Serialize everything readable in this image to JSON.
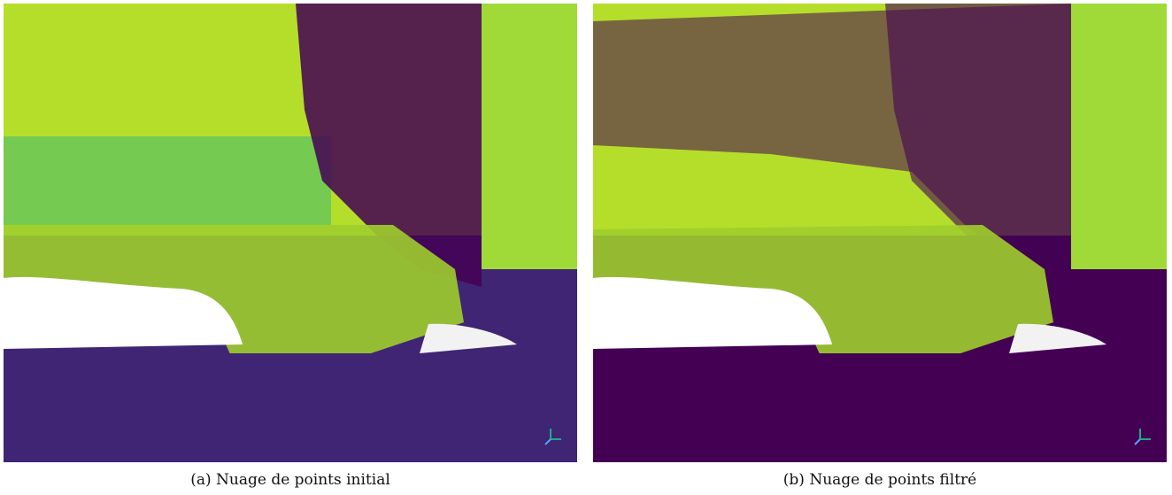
{
  "figure": {
    "panels": [
      {
        "id": "a",
        "caption": "(a) Nuage de points initial",
        "colors": {
          "foliage": "#b5de2b",
          "foliage_alt": "#6ece58",
          "teal": "#22a884",
          "dark": "#440154",
          "ground": "#3f2574",
          "white_patch": "#ffffff",
          "yellow": "#fde725"
        }
      },
      {
        "id": "b",
        "caption": "(b) Nuage de points filtré",
        "colors": {
          "foliage": "#b5de2b",
          "foliage_alt": "#7ad151",
          "teal": "#35b779",
          "dark": "#440154",
          "ground": "#440154",
          "white_patch": "#ffffff",
          "yellow": "#fde725"
        }
      }
    ],
    "axes_icon": "xyz-axes-icon"
  }
}
